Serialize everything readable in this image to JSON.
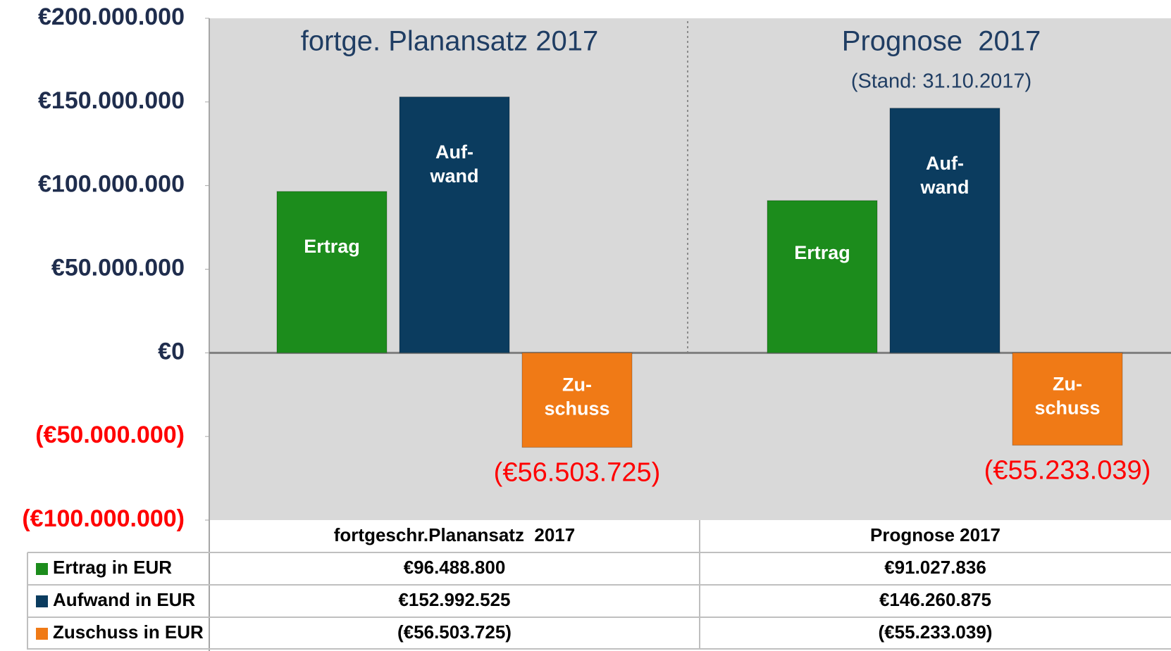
{
  "chart_data": {
    "type": "bar",
    "categories": [
      "fortgeschr.Planansatz  2017",
      "Prognose 2017"
    ],
    "panels": [
      {
        "title": "fortge. Planansatz 2017"
      },
      {
        "title": "Prognose  2017",
        "subtitle": "(Stand: 31.10.2017)"
      }
    ],
    "series": [
      {
        "name": "Ertrag in EUR",
        "bar_label": [
          "Ertrag"
        ],
        "color": "#1c8c1c",
        "values": [
          96488800,
          91027836
        ],
        "value_labels": [
          "€96.488.800",
          "€91.027.836"
        ]
      },
      {
        "name": "Aufwand in EUR",
        "bar_label": [
          "Auf-",
          "wand"
        ],
        "color": "#0b3c5f",
        "values": [
          152992525,
          146260875
        ],
        "value_labels": [
          "€152.992.525",
          "€146.260.875"
        ]
      },
      {
        "name": "Zuschuss in EUR",
        "bar_label": [
          "Zu-",
          "schuss"
        ],
        "color": "#f07a16",
        "values": [
          -56503725,
          -55233039
        ],
        "value_labels": [
          "(€56.503.725)",
          "(€55.233.039)"
        ],
        "annotation_color": "#ff0000"
      }
    ],
    "ylim": [
      -100000000,
      200000000
    ],
    "yticks": [
      {
        "value": -100000000,
        "label": "(€100.000.000)"
      },
      {
        "value": -50000000,
        "label": "(€50.000.000)"
      },
      {
        "value": 0,
        "label": "€0"
      },
      {
        "value": 50000000,
        "label": "€50.000.000"
      },
      {
        "value": 100000000,
        "label": "€100.000.000"
      },
      {
        "value": 150000000,
        "label": "€150.000.000"
      },
      {
        "value": 200000000,
        "label": "€200.000.000"
      }
    ],
    "negative_tick_color": "#ff0000",
    "data_table": true
  }
}
